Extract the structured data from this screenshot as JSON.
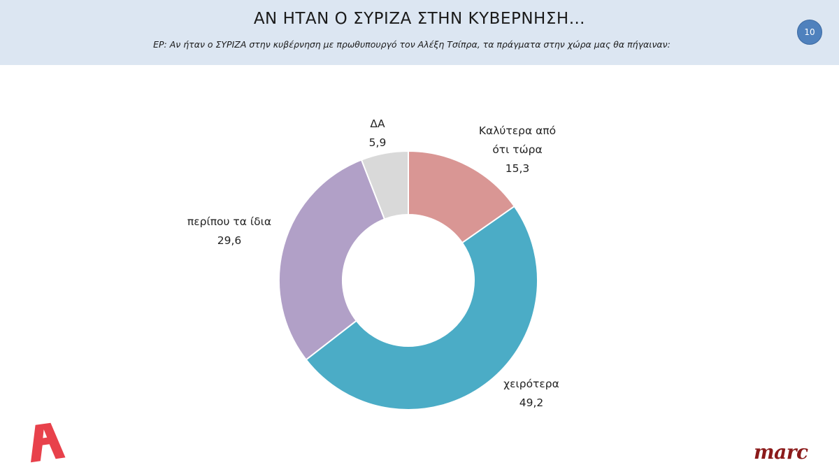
{
  "header": {
    "title": "ΑΝ ΗΤΑΝ Ο ΣΥΡΙΖΑ ΣΤΗΝ ΚΥΒΕΡΝΗΣΗ…",
    "subtitle": "ΕΡ: Αν ήταν ο ΣΥΡΙΖΑ στην κυβέρνηση με πρωθυπουργό τον Αλέξη Τσίπρα, τα πράγματα στην χώρα μας θα πήγαιναν:",
    "page_number": "10",
    "background_color": "#dce6f2",
    "badge_color": "#4f81bd"
  },
  "chart_data": {
    "type": "pie",
    "donut": true,
    "legend": "none",
    "slices": [
      {
        "label_lines": [
          "Καλύτερα από",
          "ότι τώρα"
        ],
        "value": 15.3,
        "value_text": "15,3",
        "color": "#d99694"
      },
      {
        "label_lines": [
          "χειρότερα"
        ],
        "value": 49.2,
        "value_text": "49,2",
        "color": "#4bacc6"
      },
      {
        "label_lines": [
          "περίπου τα ίδια"
        ],
        "value": 29.6,
        "value_text": "29,6",
        "color": "#b1a0c7"
      },
      {
        "label_lines": [
          "ΔΑ"
        ],
        "value": 5.9,
        "value_text": "5,9",
        "color": "#d9d9d9"
      }
    ]
  },
  "logos": {
    "left": {
      "name": "alpha-logo",
      "color": "#e8414b"
    },
    "right": {
      "text": "marc",
      "color": "#8b1a1a"
    }
  }
}
